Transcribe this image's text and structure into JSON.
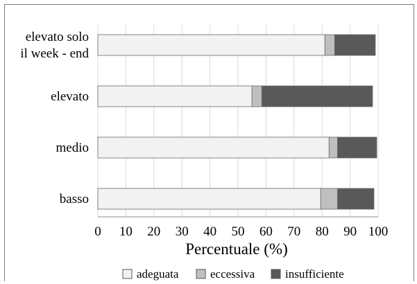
{
  "chart_data": {
    "type": "bar",
    "orientation": "horizontal",
    "stacked": true,
    "categories": [
      [
        "elevato solo",
        "il week - end"
      ],
      [
        "elevato"
      ],
      [
        "medio"
      ],
      [
        "basso"
      ]
    ],
    "series": [
      {
        "name": "adeguata",
        "color": "#f2f2f2",
        "values": [
          81,
          55,
          82.5,
          79.5
        ]
      },
      {
        "name": "eccessiva",
        "color": "#bfbfbf",
        "values": [
          3.5,
          3.5,
          3,
          6
        ]
      },
      {
        "name": "insufficiente",
        "color": "#595959",
        "values": [
          14.5,
          39.5,
          14,
          13
        ]
      }
    ],
    "xlabel": "Percentuale (%)",
    "ylabel": "",
    "xlim": [
      0,
      100
    ],
    "xticks": [
      "0",
      "10",
      "20",
      "30",
      "40",
      "50",
      "60",
      "70",
      "80",
      "90",
      "100"
    ],
    "grid": "vertical",
    "legend_position": "bottom"
  }
}
